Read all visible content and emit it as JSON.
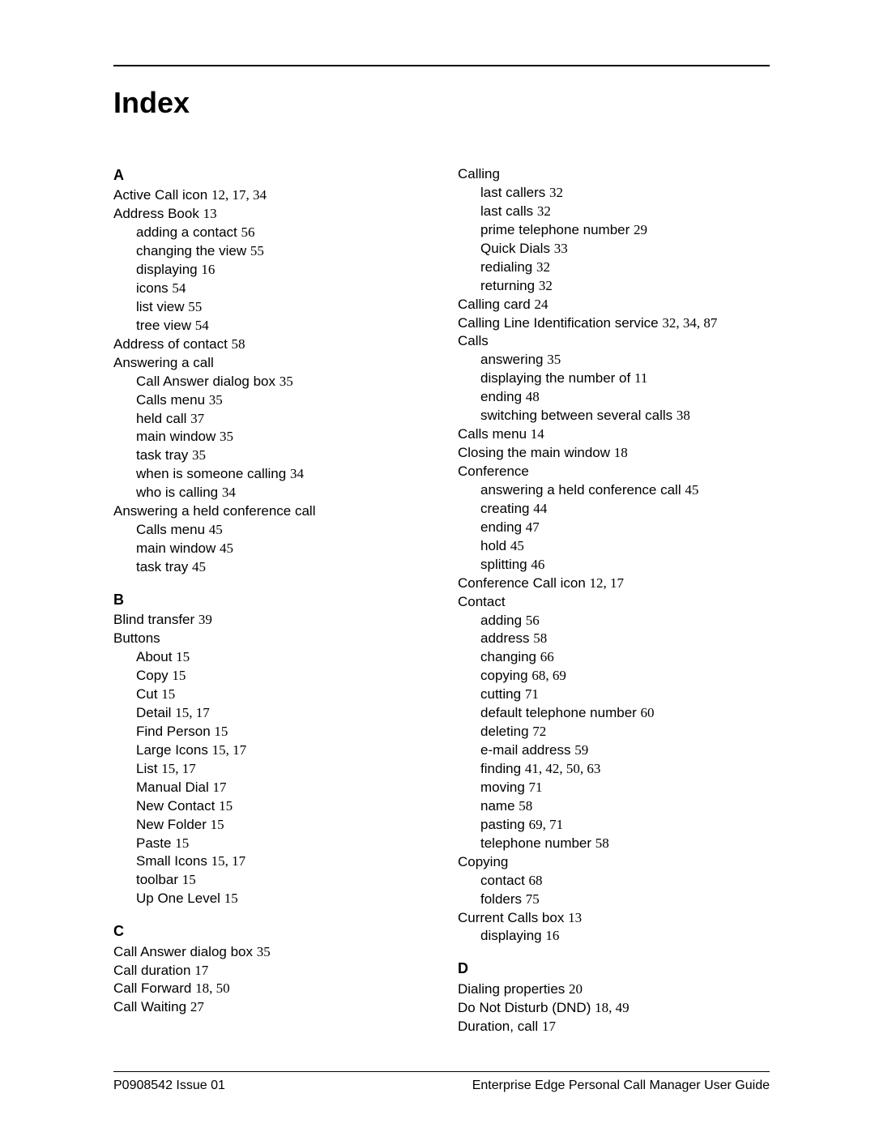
{
  "title": "Index",
  "footer": {
    "left": "P0908542 Issue 01",
    "right": "Enterprise Edge Personal Call Manager User Guide"
  },
  "col1": [
    {
      "type": "letter",
      "text": "A"
    },
    {
      "type": "entry",
      "label": "Active Call icon",
      "pages": "12, 17, 34"
    },
    {
      "type": "entry",
      "label": "Address Book",
      "pages": "13"
    },
    {
      "type": "sub",
      "label": "adding a contact",
      "pages": "56"
    },
    {
      "type": "sub",
      "label": "changing the view",
      "pages": "55"
    },
    {
      "type": "sub",
      "label": "displaying",
      "pages": "16"
    },
    {
      "type": "sub",
      "label": "icons",
      "pages": "54"
    },
    {
      "type": "sub",
      "label": "list view",
      "pages": "55"
    },
    {
      "type": "sub",
      "label": "tree view",
      "pages": "54"
    },
    {
      "type": "entry",
      "label": "Address of contact",
      "pages": "58"
    },
    {
      "type": "entry",
      "label": "Answering a call",
      "pages": ""
    },
    {
      "type": "sub",
      "label": "Call Answer dialog box",
      "pages": "35"
    },
    {
      "type": "sub",
      "label": "Calls menu",
      "pages": "35"
    },
    {
      "type": "sub",
      "label": "held call",
      "pages": "37"
    },
    {
      "type": "sub",
      "label": "main window",
      "pages": "35"
    },
    {
      "type": "sub",
      "label": "task tray",
      "pages": "35"
    },
    {
      "type": "sub",
      "label": "when is someone calling",
      "pages": "34"
    },
    {
      "type": "sub",
      "label": "who is calling",
      "pages": "34"
    },
    {
      "type": "entry",
      "label": "Answering a held conference call",
      "pages": ""
    },
    {
      "type": "sub",
      "label": "Calls menu",
      "pages": "45"
    },
    {
      "type": "sub",
      "label": "main window",
      "pages": "45"
    },
    {
      "type": "sub",
      "label": "task tray",
      "pages": "45"
    },
    {
      "type": "letter",
      "text": "B"
    },
    {
      "type": "entry",
      "label": "Blind transfer",
      "pages": "39"
    },
    {
      "type": "entry",
      "label": "Buttons",
      "pages": ""
    },
    {
      "type": "sub",
      "label": "About",
      "pages": "15"
    },
    {
      "type": "sub",
      "label": "Copy",
      "pages": "15"
    },
    {
      "type": "sub",
      "label": "Cut",
      "pages": "15"
    },
    {
      "type": "sub",
      "label": "Detail",
      "pages": "15, 17"
    },
    {
      "type": "sub",
      "label": "Find Person",
      "pages": "15"
    },
    {
      "type": "sub",
      "label": "Large Icons",
      "pages": "15, 17"
    },
    {
      "type": "sub",
      "label": "List",
      "pages": "15, 17"
    },
    {
      "type": "sub",
      "label": "Manual Dial",
      "pages": "17"
    },
    {
      "type": "sub",
      "label": "New Contact",
      "pages": "15"
    },
    {
      "type": "sub",
      "label": "New Folder",
      "pages": "15"
    },
    {
      "type": "sub",
      "label": "Paste",
      "pages": "15"
    },
    {
      "type": "sub",
      "label": "Small Icons",
      "pages": "15, 17"
    },
    {
      "type": "sub",
      "label": "toolbar",
      "pages": "15"
    },
    {
      "type": "sub",
      "label": "Up One Level",
      "pages": "15"
    },
    {
      "type": "letter",
      "text": "C"
    },
    {
      "type": "entry",
      "label": "Call Answer dialog box",
      "pages": "35"
    },
    {
      "type": "entry",
      "label": "Call duration",
      "pages": "17"
    },
    {
      "type": "entry",
      "label": "Call Forward",
      "pages": "18, 50"
    },
    {
      "type": "entry",
      "label": "Call Waiting",
      "pages": "27"
    }
  ],
  "col2": [
    {
      "type": "entry",
      "label": "Calling",
      "pages": ""
    },
    {
      "type": "sub",
      "label": "last callers",
      "pages": "32"
    },
    {
      "type": "sub",
      "label": "last calls",
      "pages": "32"
    },
    {
      "type": "sub",
      "label": "prime telephone number",
      "pages": "29"
    },
    {
      "type": "sub",
      "label": "Quick Dials",
      "pages": "33"
    },
    {
      "type": "sub",
      "label": "redialing",
      "pages": "32"
    },
    {
      "type": "sub",
      "label": "returning",
      "pages": "32"
    },
    {
      "type": "entry",
      "label": "Calling card",
      "pages": "24"
    },
    {
      "type": "entry",
      "label": "Calling Line Identification service",
      "pages": "32, 34, 87"
    },
    {
      "type": "entry",
      "label": "Calls",
      "pages": ""
    },
    {
      "type": "sub",
      "label": "answering",
      "pages": "35"
    },
    {
      "type": "sub",
      "label": "displaying the number of",
      "pages": "11"
    },
    {
      "type": "sub",
      "label": "ending",
      "pages": "48"
    },
    {
      "type": "sub",
      "label": "switching between several calls",
      "pages": "38"
    },
    {
      "type": "entry",
      "label": "Calls menu",
      "pages": "14"
    },
    {
      "type": "entry",
      "label": "Closing the main window",
      "pages": "18"
    },
    {
      "type": "entry",
      "label": "Conference",
      "pages": ""
    },
    {
      "type": "sub",
      "label": "answering a held conference call",
      "pages": "45"
    },
    {
      "type": "sub",
      "label": "creating",
      "pages": "44"
    },
    {
      "type": "sub",
      "label": "ending",
      "pages": "47"
    },
    {
      "type": "sub",
      "label": "hold",
      "pages": "45"
    },
    {
      "type": "sub",
      "label": "splitting",
      "pages": "46"
    },
    {
      "type": "entry",
      "label": "Conference Call icon",
      "pages": "12, 17"
    },
    {
      "type": "entry",
      "label": "Contact",
      "pages": ""
    },
    {
      "type": "sub",
      "label": "adding",
      "pages": "56"
    },
    {
      "type": "sub",
      "label": "address",
      "pages": "58"
    },
    {
      "type": "sub",
      "label": "changing",
      "pages": "66"
    },
    {
      "type": "sub",
      "label": "copying",
      "pages": "68, 69"
    },
    {
      "type": "sub",
      "label": "cutting",
      "pages": "71"
    },
    {
      "type": "sub",
      "label": "default telephone number",
      "pages": "60"
    },
    {
      "type": "sub",
      "label": "deleting",
      "pages": "72"
    },
    {
      "type": "sub",
      "label": "e-mail address",
      "pages": "59"
    },
    {
      "type": "sub",
      "label": "finding",
      "pages": "41, 42, 50, 63"
    },
    {
      "type": "sub",
      "label": "moving",
      "pages": "71"
    },
    {
      "type": "sub",
      "label": "name",
      "pages": "58"
    },
    {
      "type": "sub",
      "label": "pasting",
      "pages": "69, 71"
    },
    {
      "type": "sub",
      "label": "telephone number",
      "pages": "58"
    },
    {
      "type": "entry",
      "label": "Copying",
      "pages": ""
    },
    {
      "type": "sub",
      "label": "contact",
      "pages": "68"
    },
    {
      "type": "sub",
      "label": "folders",
      "pages": "75"
    },
    {
      "type": "entry",
      "label": "Current Calls box",
      "pages": "13"
    },
    {
      "type": "sub",
      "label": "displaying",
      "pages": "16"
    },
    {
      "type": "letter",
      "text": "D"
    },
    {
      "type": "entry",
      "label": "Dialing properties",
      "pages": "20"
    },
    {
      "type": "entry",
      "label": "Do Not Disturb (DND)",
      "pages": "18, 49"
    },
    {
      "type": "entry",
      "label": "Duration, call",
      "pages": "17"
    }
  ]
}
